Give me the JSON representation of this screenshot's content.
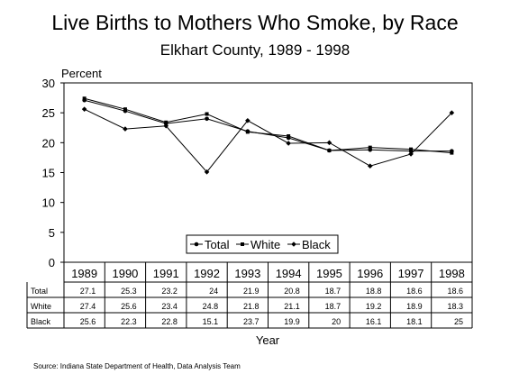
{
  "chart_data": {
    "type": "line",
    "title": "Live Births to Mothers Who Smoke, by Race",
    "subtitle": "Elkhart County, 1989 - 1998",
    "ylabel": "Percent",
    "xlabel": "Year",
    "ylim": [
      0,
      30
    ],
    "yticks": [
      "0",
      "5",
      "10",
      "15",
      "20",
      "25",
      "30"
    ],
    "categories": [
      "1989",
      "1990",
      "1991",
      "1992",
      "1993",
      "1994",
      "1995",
      "1996",
      "1997",
      "1998"
    ],
    "series": [
      {
        "name": "Total",
        "marker": "circle",
        "values": [
          27.1,
          25.3,
          23.2,
          24,
          21.9,
          20.8,
          18.7,
          18.8,
          18.6,
          18.6
        ],
        "labels": [
          "27.1",
          "25.3",
          "23.2",
          "24",
          "21.9",
          "20.8",
          "18.7",
          "18.8",
          "18.6",
          "18.6"
        ]
      },
      {
        "name": "White",
        "marker": "square",
        "values": [
          27.4,
          25.6,
          23.4,
          24.8,
          21.8,
          21.1,
          18.7,
          19.2,
          18.9,
          18.3
        ],
        "labels": [
          "27.4",
          "25.6",
          "23.4",
          "24.8",
          "21.8",
          "21.1",
          "18.7",
          "19.2",
          "18.9",
          "18.3"
        ]
      },
      {
        "name": "Black",
        "marker": "diamond",
        "values": [
          25.6,
          22.3,
          22.8,
          15.1,
          23.7,
          19.9,
          20,
          16.1,
          18.1,
          25
        ],
        "labels": [
          "25.6",
          "22.3",
          "22.8",
          "15.1",
          "23.7",
          "19.9",
          "20",
          "16.1",
          "18.1",
          "25"
        ]
      }
    ],
    "grid": false,
    "legend_position": "bottom-right"
  },
  "source": "Source:  Indiana State Department of Health, Data Analysis Team"
}
